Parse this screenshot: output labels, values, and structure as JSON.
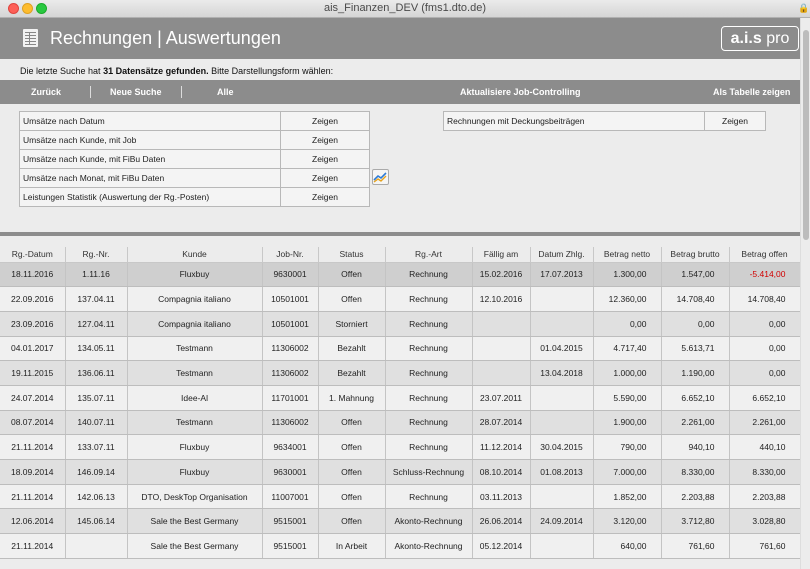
{
  "window": {
    "title": "ais_Finanzen_DEV (fms1.dto.de)"
  },
  "header": {
    "title": "Rechnungen | Auswertungen",
    "logo_main": "a.i.s",
    "logo_pro": "pro"
  },
  "info": {
    "prefix": "Die letzte Suche hat ",
    "count": "31 Datensätze gefunden.",
    "suffix": " Bitte Darstellungsform wählen:"
  },
  "nav": {
    "back": "Zurück",
    "new_search": "Neue Suche",
    "all": "Alle",
    "update": "Aktualisiere Job-Controlling",
    "as_table": "Als Tabelle zeigen"
  },
  "stats": [
    {
      "label": "Umsätze nach Datum",
      "action": "Zeigen"
    },
    {
      "label": "Umsätze nach Kunde, mit Job",
      "action": "Zeigen"
    },
    {
      "label": "Umsätze nach Kunde, mit FiBu Daten",
      "action": "Zeigen"
    },
    {
      "label": "Umsätze nach Monat, mit FiBu Daten",
      "action": "Zeigen"
    },
    {
      "label": "Leistungen Statistik (Auswertung der Rg.-Posten)",
      "action": "Zeigen"
    }
  ],
  "stats2": {
    "label": "Rechnungen mit Deckungsbeiträgen",
    "action": "Zeigen"
  },
  "columns": [
    "Rg.-Datum",
    "Rg.-Nr.",
    "Kunde",
    "Job-Nr.",
    "Status",
    "Rg.-Art",
    "Fällig am",
    "Datum Zhlg.",
    "Betrag netto",
    "Betrag brutto",
    "Betrag offen"
  ],
  "rows": [
    [
      "18.11.2016",
      "1.11.16",
      "Fluxbuy",
      "9630001",
      "Offen",
      "Rechnung",
      "15.02.2016",
      "17.07.2013",
      "1.300,00",
      "1.547,00",
      "-5.414,00"
    ],
    [
      "22.09.2016",
      "137.04.11",
      "Compagnia italiano",
      "10501001",
      "Offen",
      "Rechnung",
      "12.10.2016",
      "",
      "12.360,00",
      "14.708,40",
      "14.708,40"
    ],
    [
      "23.09.2016",
      "127.04.11",
      "Compagnia italiano",
      "10501001",
      "Storniert",
      "Rechnung",
      "",
      "",
      "0,00",
      "0,00",
      "0,00"
    ],
    [
      "04.01.2017",
      "134.05.11",
      "Testmann",
      "11306002",
      "Bezahlt",
      "Rechnung",
      "",
      "01.04.2015",
      "4.717,40",
      "5.613,71",
      "0,00"
    ],
    [
      "19.11.2015",
      "136.06.11",
      "Testmann",
      "11306002",
      "Bezahlt",
      "Rechnung",
      "",
      "13.04.2018",
      "1.000,00",
      "1.190,00",
      "0,00"
    ],
    [
      "24.07.2014",
      "135.07.11",
      "Idee-Al",
      "11701001",
      "1. Mahnung",
      "Rechnung",
      "23.07.2011",
      "",
      "5.590,00",
      "6.652,10",
      "6.652,10"
    ],
    [
      "08.07.2014",
      "140.07.11",
      "Testmann",
      "11306002",
      "Offen",
      "Rechnung",
      "28.07.2014",
      "",
      "1.900,00",
      "2.261,00",
      "2.261,00"
    ],
    [
      "21.11.2014",
      "133.07.11",
      "Fluxbuy",
      "9634001",
      "Offen",
      "Rechnung",
      "11.12.2014",
      "30.04.2015",
      "790,00",
      "940,10",
      "440,10"
    ],
    [
      "18.09.2014",
      "146.09.14",
      "Fluxbuy",
      "9630001",
      "Offen",
      "Schluss-Rechnung",
      "08.10.2014",
      "01.08.2013",
      "7.000,00",
      "8.330,00",
      "8.330,00"
    ],
    [
      "21.11.2014",
      "142.06.13",
      "DTO, DeskTop Organisation",
      "11007001",
      "Offen",
      "Rechnung",
      "03.11.2013",
      "",
      "1.852,00",
      "2.203,88",
      "2.203,88"
    ],
    [
      "12.06.2014",
      "145.06.14",
      "Sale the Best Germany",
      "9515001",
      "Offen",
      "Akonto-Rechnung",
      "26.06.2014",
      "24.09.2014",
      "3.120,00",
      "3.712,80",
      "3.028,80"
    ],
    [
      "21.11.2014",
      "",
      "Sale the Best Germany",
      "9515001",
      "In Arbeit",
      "Akonto-Rechnung",
      "05.12.2014",
      "",
      "640,00",
      "761,60",
      "761,60"
    ]
  ]
}
